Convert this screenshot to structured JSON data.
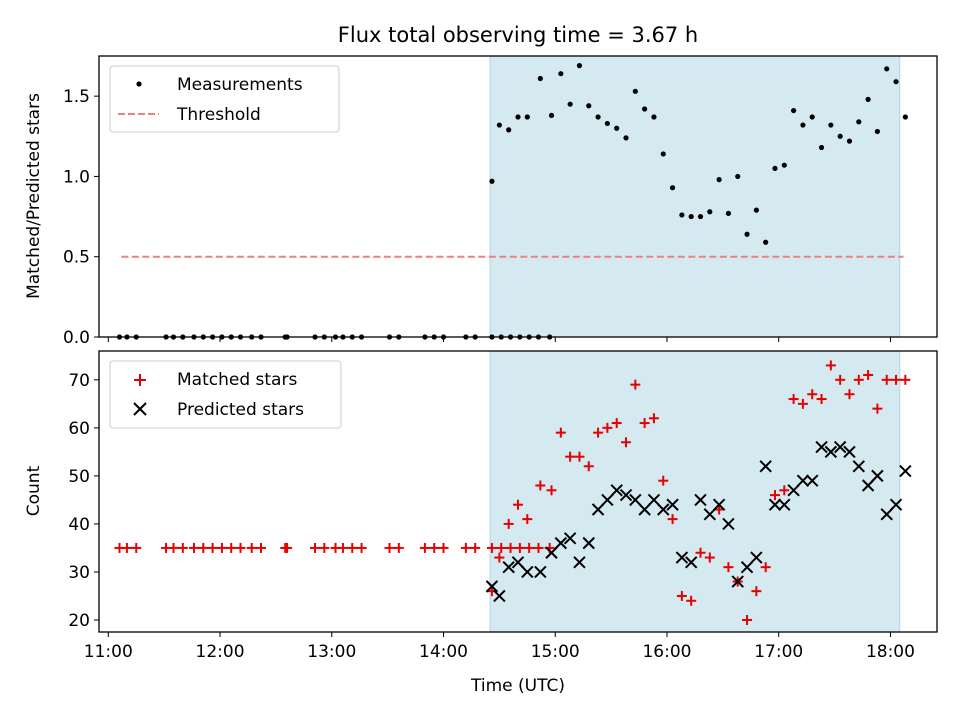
{
  "figure": {
    "title": "Flux total observing time = 3.67 h"
  },
  "chart_data": [
    {
      "type": "scatter",
      "title": "Flux total observing time = 3.67 h",
      "xlabel": "",
      "ylabel": "Matched/Predicted stars",
      "xlim": [
        "10:55",
        "18:25"
      ],
      "ylim": [
        0,
        1.75
      ],
      "yticks": [
        0.0,
        0.5,
        1.0,
        1.5
      ],
      "ytick_labels": [
        "0.0",
        "0.5",
        "1.0",
        "1.5"
      ],
      "xticks": [
        "11:00",
        "12:00",
        "13:00",
        "14:00",
        "15:00",
        "16:00",
        "17:00",
        "18:00"
      ],
      "grid": false,
      "legend": "upper left",
      "shaded_interval": {
        "x": [
          "14:25",
          "18:05"
        ],
        "color": "#d4eaf0"
      },
      "series": [
        {
          "name": "Measurements",
          "marker": "dot",
          "color": "#000000",
          "points": [
            [
              "11:06",
              0
            ],
            [
              "11:10",
              0
            ],
            [
              "11:15",
              0
            ],
            [
              "11:31",
              0
            ],
            [
              "11:35",
              0
            ],
            [
              "11:40",
              0
            ],
            [
              "11:46",
              0
            ],
            [
              "11:51",
              0
            ],
            [
              "11:56",
              0
            ],
            [
              "12:01",
              0
            ],
            [
              "12:06",
              0
            ],
            [
              "12:11",
              0
            ],
            [
              "12:17",
              0
            ],
            [
              "12:22",
              0
            ],
            [
              "12:35",
              0
            ],
            [
              "12:36",
              0
            ],
            [
              "12:51",
              0
            ],
            [
              "12:56",
              0
            ],
            [
              "13:02",
              0
            ],
            [
              "13:06",
              0
            ],
            [
              "13:11",
              0
            ],
            [
              "13:16",
              0
            ],
            [
              "13:31",
              0
            ],
            [
              "13:36",
              0
            ],
            [
              "13:50",
              0
            ],
            [
              "13:55",
              0
            ],
            [
              "14:00",
              0
            ],
            [
              "14:12",
              0
            ],
            [
              "14:17",
              0
            ],
            [
              "14:26",
              0
            ],
            [
              "14:31",
              0
            ],
            [
              "14:36",
              0
            ],
            [
              "14:41",
              0
            ],
            [
              "14:46",
              0
            ],
            [
              "14:51",
              0
            ],
            [
              "14:57",
              0
            ],
            [
              "14:26",
              0.97
            ],
            [
              "14:30",
              1.32
            ],
            [
              "14:35",
              1.29
            ],
            [
              "14:40",
              1.37
            ],
            [
              "14:45",
              1.37
            ],
            [
              "14:52",
              1.61
            ],
            [
              "14:58",
              1.38
            ],
            [
              "15:03",
              1.64
            ],
            [
              "15:08",
              1.45
            ],
            [
              "15:13",
              1.69
            ],
            [
              "15:18",
              1.44
            ],
            [
              "15:23",
              1.37
            ],
            [
              "15:28",
              1.33
            ],
            [
              "15:33",
              1.3
            ],
            [
              "15:38",
              1.24
            ],
            [
              "15:43",
              1.53
            ],
            [
              "15:48",
              1.42
            ],
            [
              "15:53",
              1.37
            ],
            [
              "15:58",
              1.14
            ],
            [
              "16:03",
              0.93
            ],
            [
              "16:08",
              0.76
            ],
            [
              "16:13",
              0.75
            ],
            [
              "16:18",
              0.75
            ],
            [
              "16:23",
              0.78
            ],
            [
              "16:28",
              0.98
            ],
            [
              "16:33",
              0.77
            ],
            [
              "16:38",
              1.0
            ],
            [
              "16:43",
              0.64
            ],
            [
              "16:48",
              0.79
            ],
            [
              "16:53",
              0.59
            ],
            [
              "16:58",
              1.05
            ],
            [
              "17:03",
              1.07
            ],
            [
              "17:08",
              1.41
            ],
            [
              "17:13",
              1.32
            ],
            [
              "17:18",
              1.37
            ],
            [
              "17:23",
              1.18
            ],
            [
              "17:28",
              1.32
            ],
            [
              "17:33",
              1.25
            ],
            [
              "17:38",
              1.22
            ],
            [
              "17:43",
              1.34
            ],
            [
              "17:48",
              1.48
            ],
            [
              "17:53",
              1.28
            ],
            [
              "17:58",
              1.67
            ],
            [
              "18:03",
              1.59
            ],
            [
              "18:08",
              1.37
            ]
          ]
        },
        {
          "name": "Threshold",
          "style": "dashed",
          "color": "#f08080",
          "points": [
            [
              "11:07",
              0.5
            ],
            [
              "18:07",
              0.5
            ]
          ]
        }
      ]
    },
    {
      "type": "scatter",
      "title": "",
      "xlabel": "Time (UTC)",
      "ylabel": "Count",
      "xlim": [
        "10:55",
        "18:25"
      ],
      "ylim": [
        17.5,
        76
      ],
      "yticks": [
        20,
        30,
        40,
        50,
        60,
        70
      ],
      "ytick_labels": [
        "20",
        "30",
        "40",
        "50",
        "60",
        "70"
      ],
      "xticks": [
        "11:00",
        "12:00",
        "13:00",
        "14:00",
        "15:00",
        "16:00",
        "17:00",
        "18:00"
      ],
      "grid": false,
      "legend": "upper left",
      "shaded_interval": {
        "x": [
          "14:25",
          "18:05"
        ],
        "color": "#d4eaf0"
      },
      "series": [
        {
          "name": "Matched stars",
          "marker": "plus",
          "color": "#e60000",
          "points": [
            [
              "11:06",
              35
            ],
            [
              "11:10",
              35
            ],
            [
              "11:15",
              35
            ],
            [
              "11:31",
              35
            ],
            [
              "11:35",
              35
            ],
            [
              "11:40",
              35
            ],
            [
              "11:46",
              35
            ],
            [
              "11:51",
              35
            ],
            [
              "11:56",
              35
            ],
            [
              "12:01",
              35
            ],
            [
              "12:06",
              35
            ],
            [
              "12:11",
              35
            ],
            [
              "12:17",
              35
            ],
            [
              "12:22",
              35
            ],
            [
              "12:35",
              35
            ],
            [
              "12:36",
              35
            ],
            [
              "12:51",
              35
            ],
            [
              "12:56",
              35
            ],
            [
              "13:02",
              35
            ],
            [
              "13:06",
              35
            ],
            [
              "13:11",
              35
            ],
            [
              "13:16",
              35
            ],
            [
              "13:31",
              35
            ],
            [
              "13:36",
              35
            ],
            [
              "13:50",
              35
            ],
            [
              "13:55",
              35
            ],
            [
              "14:00",
              35
            ],
            [
              "14:12",
              35
            ],
            [
              "14:17",
              35
            ],
            [
              "14:26",
              35
            ],
            [
              "14:31",
              35
            ],
            [
              "14:36",
              35
            ],
            [
              "14:41",
              35
            ],
            [
              "14:46",
              35
            ],
            [
              "14:51",
              35
            ],
            [
              "14:57",
              35
            ],
            [
              "14:26",
              26
            ],
            [
              "14:30",
              33
            ],
            [
              "14:35",
              40
            ],
            [
              "14:40",
              44
            ],
            [
              "14:45",
              41
            ],
            [
              "14:52",
              48
            ],
            [
              "14:58",
              47
            ],
            [
              "15:03",
              59
            ],
            [
              "15:08",
              54
            ],
            [
              "15:13",
              54
            ],
            [
              "15:18",
              52
            ],
            [
              "15:23",
              59
            ],
            [
              "15:28",
              60
            ],
            [
              "15:33",
              61
            ],
            [
              "15:38",
              57
            ],
            [
              "15:43",
              69
            ],
            [
              "15:48",
              61
            ],
            [
              "15:53",
              62
            ],
            [
              "15:58",
              49
            ],
            [
              "16:03",
              41
            ],
            [
              "16:08",
              25
            ],
            [
              "16:13",
              24
            ],
            [
              "16:18",
              34
            ],
            [
              "16:23",
              33
            ],
            [
              "16:28",
              43
            ],
            [
              "16:33",
              31
            ],
            [
              "16:38",
              28
            ],
            [
              "16:43",
              20
            ],
            [
              "16:48",
              26
            ],
            [
              "16:53",
              31
            ],
            [
              "16:58",
              46
            ],
            [
              "17:03",
              47
            ],
            [
              "17:08",
              66
            ],
            [
              "17:13",
              65
            ],
            [
              "17:18",
              67
            ],
            [
              "17:23",
              66
            ],
            [
              "17:28",
              73
            ],
            [
              "17:33",
              70
            ],
            [
              "17:38",
              67
            ],
            [
              "17:43",
              70
            ],
            [
              "17:48",
              71
            ],
            [
              "17:53",
              64
            ],
            [
              "17:58",
              70
            ],
            [
              "18:03",
              70
            ],
            [
              "18:08",
              70
            ]
          ]
        },
        {
          "name": "Predicted stars",
          "marker": "x",
          "color": "#000000",
          "points": [
            [
              "14:26",
              27
            ],
            [
              "14:30",
              25
            ],
            [
              "14:35",
              31
            ],
            [
              "14:40",
              32
            ],
            [
              "14:45",
              30
            ],
            [
              "14:52",
              30
            ],
            [
              "14:58",
              34
            ],
            [
              "15:03",
              36
            ],
            [
              "15:08",
              37
            ],
            [
              "15:13",
              32
            ],
            [
              "15:18",
              36
            ],
            [
              "15:23",
              43
            ],
            [
              "15:28",
              45
            ],
            [
              "15:33",
              47
            ],
            [
              "15:38",
              46
            ],
            [
              "15:43",
              45
            ],
            [
              "15:48",
              43
            ],
            [
              "15:53",
              45
            ],
            [
              "15:58",
              43
            ],
            [
              "16:03",
              44
            ],
            [
              "16:08",
              33
            ],
            [
              "16:13",
              32
            ],
            [
              "16:18",
              45
            ],
            [
              "16:23",
              42
            ],
            [
              "16:28",
              44
            ],
            [
              "16:33",
              40
            ],
            [
              "16:38",
              28
            ],
            [
              "16:43",
              31
            ],
            [
              "16:48",
              33
            ],
            [
              "16:53",
              52
            ],
            [
              "16:58",
              44
            ],
            [
              "17:03",
              44
            ],
            [
              "17:08",
              47
            ],
            [
              "17:13",
              49
            ],
            [
              "17:18",
              49
            ],
            [
              "17:23",
              56
            ],
            [
              "17:28",
              55
            ],
            [
              "17:33",
              56
            ],
            [
              "17:38",
              55
            ],
            [
              "17:43",
              52
            ],
            [
              "17:48",
              48
            ],
            [
              "17:53",
              50
            ],
            [
              "17:58",
              42
            ],
            [
              "18:03",
              44
            ],
            [
              "18:08",
              51
            ]
          ]
        }
      ]
    }
  ]
}
